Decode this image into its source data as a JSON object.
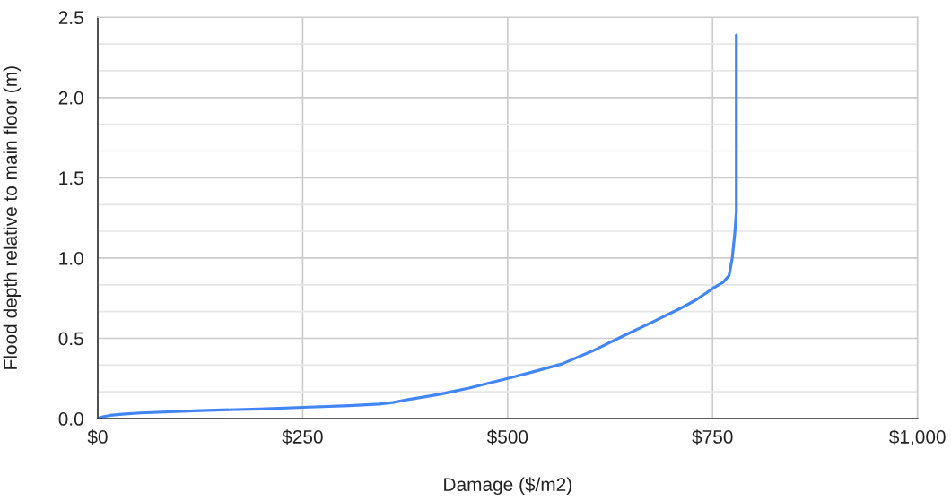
{
  "chart_data": {
    "type": "line",
    "xlabel": "Damage ($/m2)",
    "ylabel": "Flood depth relative to main floor (m)",
    "x": [
      0,
      5,
      15,
      30,
      52,
      125,
      198,
      250,
      307,
      343,
      360,
      380,
      416,
      453,
      500,
      530,
      566,
      603,
      639,
      676,
      712,
      730,
      750,
      763,
      770,
      774,
      777,
      779,
      779
    ],
    "series": [
      {
        "color": "#4285f4",
        "values": [
          0,
          0.01,
          0.02,
          0.027,
          0.035,
          0.05,
          0.06,
          0.07,
          0.08,
          0.09,
          0.1,
          0.12,
          0.15,
          0.19,
          0.25,
          0.29,
          0.34,
          0.42,
          0.51,
          0.6,
          0.69,
          0.74,
          0.81,
          0.85,
          0.89,
          1.0,
          1.15,
          1.29,
          2.39
        ]
      }
    ],
    "xlim": [
      0,
      1000
    ],
    "xticks": [
      {
        "value": 0,
        "label": "$0"
      },
      {
        "value": 250,
        "label": "$250"
      },
      {
        "value": 500,
        "label": "$500"
      },
      {
        "value": 750,
        "label": "$750"
      },
      {
        "value": 1000,
        "label": "$1,000"
      }
    ],
    "ylim": [
      0,
      2.5
    ],
    "yticks": [
      {
        "value": 0,
        "label": "0.0"
      },
      {
        "value": 0.167,
        "label": null
      },
      {
        "value": 0.333,
        "label": null
      },
      {
        "value": 0.5,
        "label": "0.5"
      },
      {
        "value": 0.667,
        "label": null
      },
      {
        "value": 0.833,
        "label": null
      },
      {
        "value": 1.0,
        "label": "1.0"
      },
      {
        "value": 1.167,
        "label": null
      },
      {
        "value": 1.333,
        "label": null
      },
      {
        "value": 1.5,
        "label": "1.5"
      },
      {
        "value": 1.667,
        "label": null
      },
      {
        "value": 1.833,
        "label": null
      },
      {
        "value": 2.0,
        "label": "2.0"
      },
      {
        "value": 2.167,
        "label": null
      },
      {
        "value": 2.333,
        "label": null
      },
      {
        "value": 2.5,
        "label": "2.5"
      }
    ],
    "grid": true,
    "marker": "none",
    "line_style": "solid"
  }
}
